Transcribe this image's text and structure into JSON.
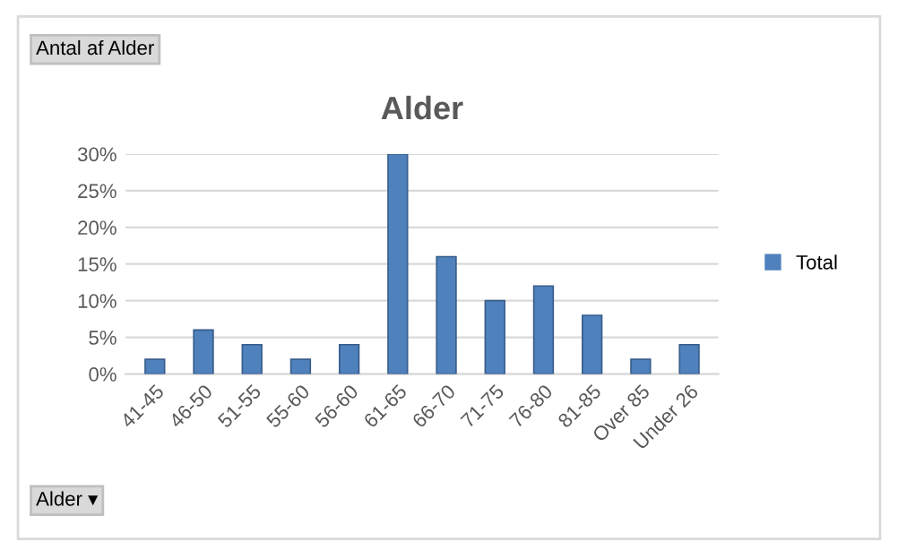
{
  "chart_data": {
    "type": "bar",
    "title": "Alder",
    "categories": [
      "41-45",
      "46-50",
      "51-55",
      "55-60",
      "56-60",
      "61-65",
      "66-70",
      "71-75",
      "76-80",
      "81-85",
      "Over 85",
      "Under 26"
    ],
    "series": [
      {
        "name": "Total",
        "color": "#4f81bd",
        "values": [
          2,
          6,
          4,
          2,
          4,
          30,
          16,
          10,
          12,
          8,
          2,
          4
        ]
      }
    ],
    "ylim": [
      0,
      30
    ],
    "yticks": [
      {
        "value": 0,
        "label": "0%"
      },
      {
        "value": 5,
        "label": "5%"
      },
      {
        "value": 10,
        "label": "10%"
      },
      {
        "value": 15,
        "label": "15%"
      },
      {
        "value": 20,
        "label": "20%"
      },
      {
        "value": 25,
        "label": "25%"
      },
      {
        "value": 30,
        "label": "30%"
      }
    ],
    "grid": "y",
    "legend": "right",
    "annotations": [
      "Antal af Alder",
      "Alder ▾"
    ]
  }
}
